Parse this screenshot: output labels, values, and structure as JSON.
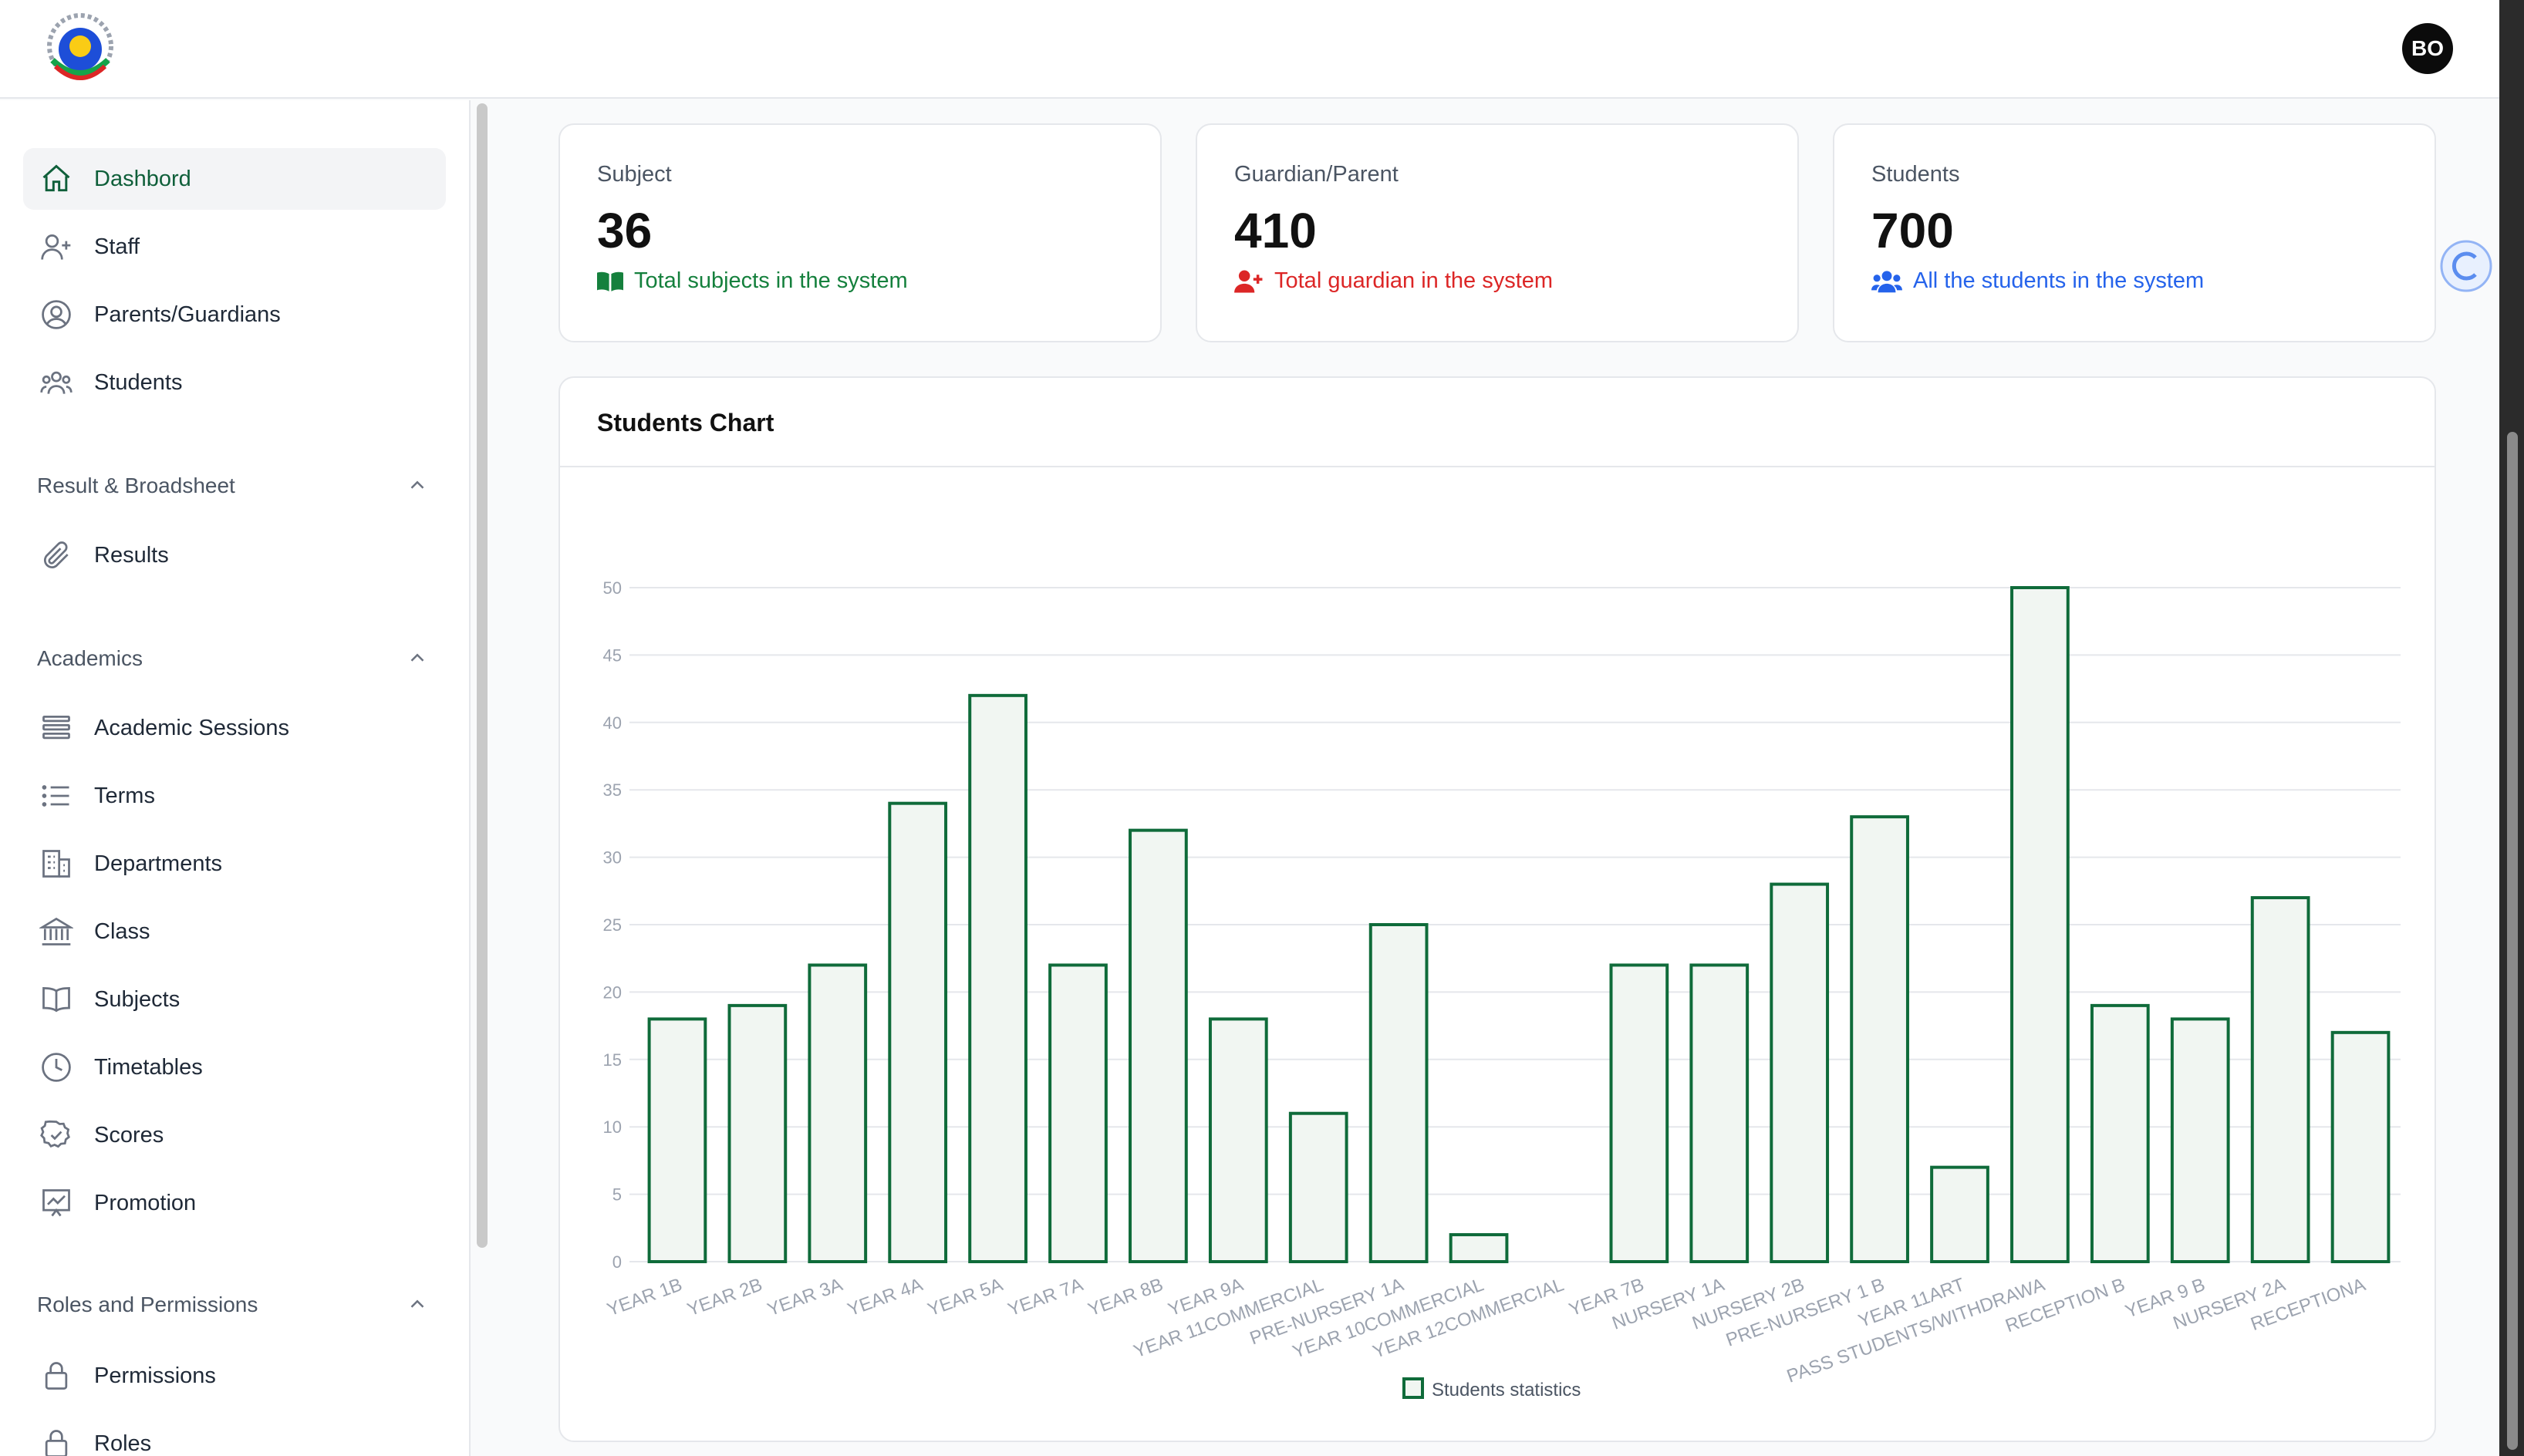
{
  "header": {
    "avatar_initials": "BO",
    "logo_icon": "school-crest-logo"
  },
  "sidebar": {
    "items": [
      {
        "label": "Dashbord",
        "icon": "home-icon",
        "active": true
      },
      {
        "label": "Staff",
        "icon": "user-plus-icon"
      },
      {
        "label": "Parents/Guardians",
        "icon": "user-circle-icon"
      },
      {
        "label": "Students",
        "icon": "users-icon"
      }
    ],
    "sections": [
      {
        "title": "Result & Broadsheet",
        "items": [
          {
            "label": "Results",
            "icon": "paperclip-icon"
          }
        ]
      },
      {
        "title": "Academics",
        "items": [
          {
            "label": "Academic Sessions",
            "icon": "stack-icon"
          },
          {
            "label": "Terms",
            "icon": "list-icon"
          },
          {
            "label": "Departments",
            "icon": "building-icon"
          },
          {
            "label": "Class",
            "icon": "bank-icon"
          },
          {
            "label": "Subjects",
            "icon": "book-icon"
          },
          {
            "label": "Timetables",
            "icon": "clock-icon"
          },
          {
            "label": "Scores",
            "icon": "badge-check-icon"
          },
          {
            "label": "Promotion",
            "icon": "chart-icon"
          }
        ]
      },
      {
        "title": "Roles and Permissions",
        "items": [
          {
            "label": "Permissions",
            "icon": "lock-icon"
          },
          {
            "label": "Roles",
            "icon": "lock-icon"
          }
        ]
      }
    ]
  },
  "stats": [
    {
      "label": "Subject",
      "value": "36",
      "desc": "Total subjects in the system",
      "color": "#15803d",
      "icon": "book-open-icon"
    },
    {
      "label": "Guardian/Parent",
      "value": "410",
      "desc": "Total guardian in the system",
      "color": "#dc2626",
      "icon": "user-plus-icon"
    },
    {
      "label": "Students",
      "value": "700",
      "desc": "All the students in the system",
      "color": "#2563eb",
      "icon": "users-icon"
    }
  ],
  "chart_card": {
    "title": "Students Chart"
  },
  "chart_data": {
    "type": "bar",
    "categories": [
      "YEAR 1B",
      "YEAR 2B",
      "YEAR 3A",
      "YEAR 4A",
      "YEAR 5A",
      "YEAR 7A",
      "YEAR 8B",
      "YEAR 9A",
      "YEAR 11COMMERCIAL",
      "PRE-NURSERY 1A",
      "YEAR 10COMMERCIAL",
      "YEAR 12COMMERCIAL",
      "YEAR 7B",
      "NURSERY 1A",
      "NURSERY 2B",
      "PRE-NURSERY 1 B",
      "YEAR 11ART",
      "PASS STUDENTS/WITHDRAWA",
      "RECEPTION B",
      "YEAR 9 B",
      "NURSERY 2A",
      "RECEPTIONA"
    ],
    "series": [
      {
        "name": "Students statistics",
        "values": [
          18,
          19,
          22,
          34,
          42,
          22,
          32,
          18,
          11,
          25,
          2,
          0,
          22,
          22,
          28,
          33,
          7,
          50,
          19,
          18,
          27,
          17
        ]
      }
    ],
    "yticks": [
      0,
      5,
      10,
      15,
      20,
      25,
      30,
      35,
      40,
      45,
      50
    ],
    "ylim": [
      0,
      50
    ],
    "grid": true,
    "legend_position": "bottom",
    "bar_stroke": "#0f6b3a",
    "bar_fill": "#f1f6f2"
  }
}
